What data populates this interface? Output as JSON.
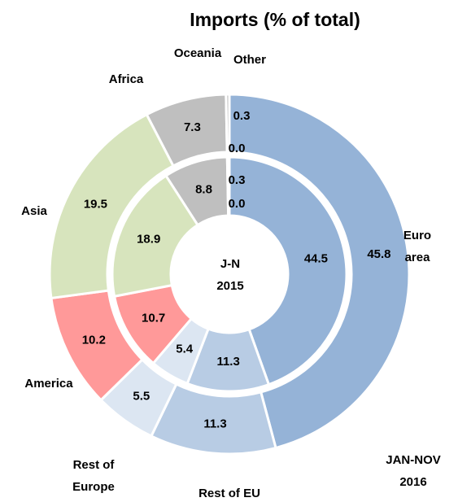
{
  "chart_data": {
    "type": "donut",
    "title": "Imports (% of total)",
    "categories": [
      "Euro area",
      "Rest of EU",
      "Rest of Europe",
      "America",
      "Asia",
      "Africa",
      "Oceania",
      "Other"
    ],
    "colors": [
      "#95b3d7",
      "#b8cce4",
      "#dce6f2",
      "#ff9999",
      "#d7e4bd",
      "#bfbfbf",
      "#bfbfbf",
      "#bfbfbf"
    ],
    "series": [
      {
        "name": "JAN-NOV 2016",
        "values": [
          45.8,
          11.3,
          5.5,
          10.2,
          19.5,
          7.3,
          0.3,
          0.0
        ],
        "value_labels": [
          "45.8",
          "11.3",
          "5.5",
          "10.2",
          "19.5",
          "7.3",
          "0.3",
          "0.0"
        ]
      },
      {
        "name": "J-N 2015",
        "values": [
          44.5,
          11.3,
          5.4,
          10.7,
          18.9,
          8.8,
          0.3,
          0.0
        ],
        "value_labels": [
          "44.5",
          "11.3",
          "5.4",
          "10.7",
          "18.9",
          "8.8",
          "0.3",
          "0.0"
        ]
      }
    ]
  }
}
